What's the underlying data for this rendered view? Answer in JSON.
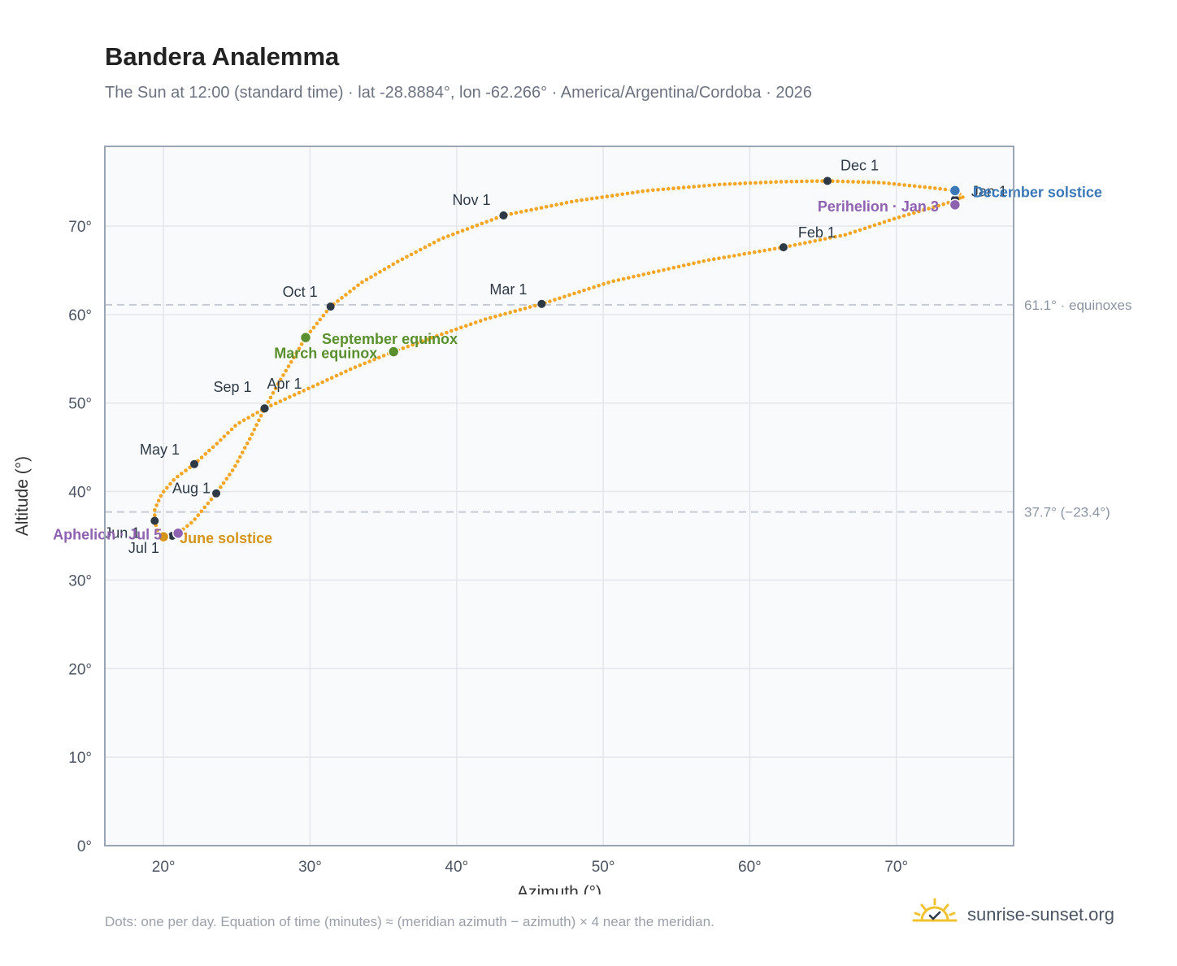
{
  "title": "Bandera Analemma",
  "subtitle": "The Sun at 12:00 (standard time) · lat -28.8884°, lon -62.266° · America/Argentina/Cordoba · 2026",
  "footnote": "Dots: one per day. Equation of time (minutes) ≈ (meridian azimuth − azimuth) × 4 near the meridian.",
  "brand": "sunrise-sunset.org",
  "colors": {
    "curve": "#f5a623",
    "month": "#2d3a46",
    "equinox": "#5a8f2e",
    "june_solstice": "#d4951a",
    "december_solstice": "#3a78b8",
    "apsis": "#8e62b0",
    "plot_bg": "#f8fafc",
    "grid": "#e3e7ec",
    "frame": "#9aa6b4",
    "ref": "#c5ccd4"
  },
  "chart_data": {
    "type": "scatter",
    "xlabel": "Azimuth (°)",
    "ylabel": "Altitude (°)",
    "xlim": [
      16,
      78
    ],
    "ylim": [
      0,
      79
    ],
    "xticks": [
      20,
      30,
      40,
      50,
      60,
      70
    ],
    "yticks": [
      0,
      10,
      20,
      30,
      40,
      50,
      60,
      70
    ],
    "xtick_labels": [
      "20°",
      "30°",
      "40°",
      "50°",
      "60°",
      "70°"
    ],
    "ytick_labels": [
      "0°",
      "10°",
      "20°",
      "30°",
      "40°",
      "50°",
      "60°",
      "70°"
    ],
    "grid": true,
    "reference_lines": [
      {
        "y": 61.1,
        "label": "61.1° · equinoxes"
      },
      {
        "y": 37.7,
        "label": "37.7° (−23.4°)"
      }
    ],
    "month_points": [
      {
        "label": "Jan 1",
        "x": 74.0,
        "y": 73.0
      },
      {
        "label": "Feb 1",
        "x": 62.3,
        "y": 67.6
      },
      {
        "label": "Mar 1",
        "x": 45.8,
        "y": 61.2
      },
      {
        "label": "Apr 1",
        "x": 26.9,
        "y": 49.4
      },
      {
        "label": "May 1",
        "x": 22.1,
        "y": 43.1
      },
      {
        "label": "Jun 1",
        "x": 19.4,
        "y": 36.7
      },
      {
        "label": "Jul 1",
        "x": 20.6,
        "y": 35.0
      },
      {
        "label": "Aug 1",
        "x": 23.6,
        "y": 39.8
      },
      {
        "label": "Sep 1",
        "x": 26.9,
        "y": 49.4
      },
      {
        "label": "Oct 1",
        "x": 31.4,
        "y": 60.9
      },
      {
        "label": "Nov 1",
        "x": 43.2,
        "y": 71.2
      },
      {
        "label": "Dec 1",
        "x": 65.3,
        "y": 75.1
      }
    ],
    "events": [
      {
        "label": "March equinox",
        "x": 35.7,
        "y": 55.8,
        "kind": "equinox"
      },
      {
        "label": "September equinox",
        "x": 29.7,
        "y": 57.4,
        "kind": "equinox"
      },
      {
        "label": "June solstice",
        "x": 20.0,
        "y": 34.9,
        "kind": "june_solstice"
      },
      {
        "label": "December solstice",
        "x": 74.0,
        "y": 74.0,
        "kind": "december_solstice"
      },
      {
        "label": "Aphelion · Jul 5",
        "x": 21.0,
        "y": 35.3,
        "kind": "apsis"
      },
      {
        "label": "Perihelion · Jan 3",
        "x": 74.0,
        "y": 72.4,
        "kind": "apsis"
      }
    ],
    "path": [
      [
        74.0,
        73.0
      ],
      [
        74.6,
        73.3
      ],
      [
        73.5,
        72.6
      ],
      [
        70.0,
        70.9
      ],
      [
        66.5,
        69.0
      ],
      [
        62.3,
        67.6
      ],
      [
        57.0,
        66.1
      ],
      [
        50.5,
        63.7
      ],
      [
        45.8,
        61.2
      ],
      [
        42.0,
        59.5
      ],
      [
        38.5,
        57.5
      ],
      [
        35.7,
        55.8
      ],
      [
        33.0,
        54.0
      ],
      [
        30.5,
        52.1
      ],
      [
        28.5,
        50.6
      ],
      [
        26.9,
        49.4
      ],
      [
        25.0,
        47.6
      ],
      [
        23.7,
        45.5
      ],
      [
        22.1,
        43.1
      ],
      [
        20.8,
        41.5
      ],
      [
        19.9,
        39.8
      ],
      [
        19.4,
        38.0
      ],
      [
        19.4,
        36.7
      ],
      [
        19.6,
        35.5
      ],
      [
        20.0,
        34.9
      ],
      [
        20.6,
        35.0
      ],
      [
        21.0,
        35.3
      ],
      [
        22.0,
        36.6
      ],
      [
        23.6,
        39.8
      ],
      [
        24.8,
        42.6
      ],
      [
        25.9,
        46.0
      ],
      [
        26.9,
        49.4
      ],
      [
        27.9,
        52.4
      ],
      [
        29.7,
        57.4
      ],
      [
        31.4,
        60.9
      ],
      [
        33.5,
        63.6
      ],
      [
        36.0,
        66.0
      ],
      [
        39.0,
        68.6
      ],
      [
        43.2,
        71.2
      ],
      [
        48.0,
        72.8
      ],
      [
        53.0,
        74.0
      ],
      [
        58.0,
        74.7
      ],
      [
        62.0,
        75.0
      ],
      [
        65.3,
        75.1
      ],
      [
        69.0,
        74.9
      ],
      [
        72.5,
        74.3
      ],
      [
        74.0,
        74.0
      ],
      [
        74.6,
        73.3
      ]
    ]
  }
}
